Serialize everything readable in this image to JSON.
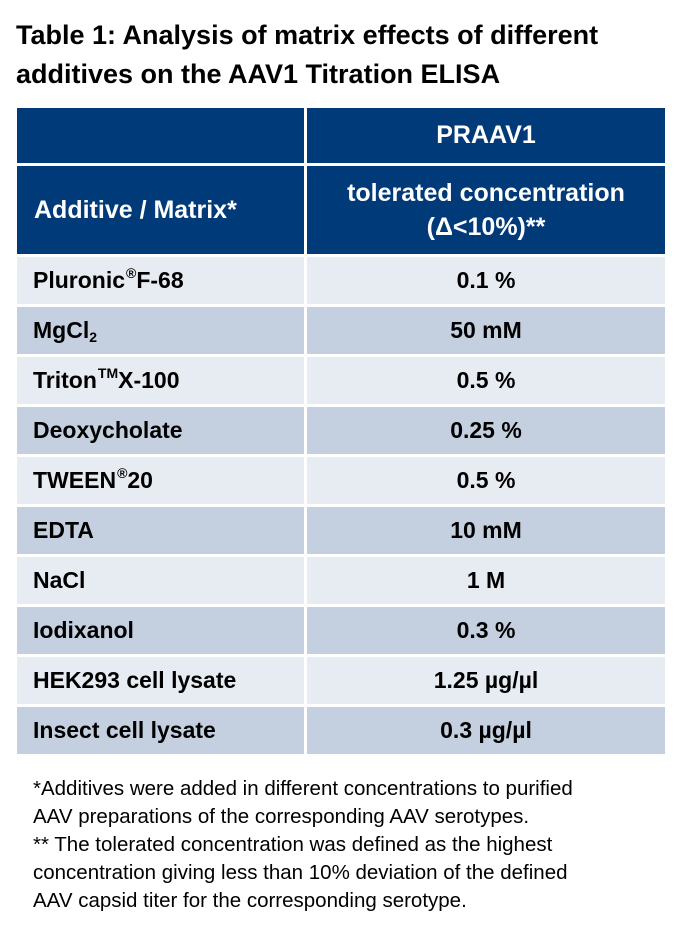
{
  "title": {
    "line1": "Table 1: Analysis of matrix effects of different",
    "line2": "additives on the AAV1 Titration ELISA"
  },
  "table": {
    "group_header": "PRAAV1",
    "col1_header": "Additive / Matrix*",
    "col2_header_line1": "tolerated concentration",
    "col2_header_line2": "(Δ<10%)**",
    "rows": [
      {
        "name": "Pluronic",
        "mark": "®",
        "suffix": " F-68",
        "value": "0.1 %"
      },
      {
        "name": "MgCl",
        "sub": "2",
        "value": "50 mM"
      },
      {
        "name": "Triton",
        "mark": "TM",
        "suffix": " X-100",
        "value": "0.5 %"
      },
      {
        "name": "Deoxycholate",
        "value": "0.25 %"
      },
      {
        "name": "TWEEN",
        "mark": "®",
        "suffix": " 20",
        "value": "0.5 %"
      },
      {
        "name": "EDTA",
        "value": "10 mM"
      },
      {
        "name": "NaCl",
        "value": "1 M"
      },
      {
        "name": "Iodixanol",
        "value": "0.3 %"
      },
      {
        "name": "HEK293 cell lysate",
        "value": "1.25 µg/µl"
      },
      {
        "name": "Insect cell lysate",
        "value": "0.3 µg/µl"
      }
    ]
  },
  "footnotes": {
    "note1_line1": "*Additives were added in different concentrations to purified",
    "note1_line2": "AAV preparations of the corresponding AAV serotypes.",
    "note2_line1": "** The tolerated concentration was defined as the highest",
    "note2_line2": "concentration giving less than 10% deviation of the defined",
    "note2_line3": "AAV capsid titer for the corresponding serotype."
  },
  "colors": {
    "header_bg": "#003a78",
    "row_light": "#e7ebf2",
    "row_dark": "#c4d0df"
  }
}
